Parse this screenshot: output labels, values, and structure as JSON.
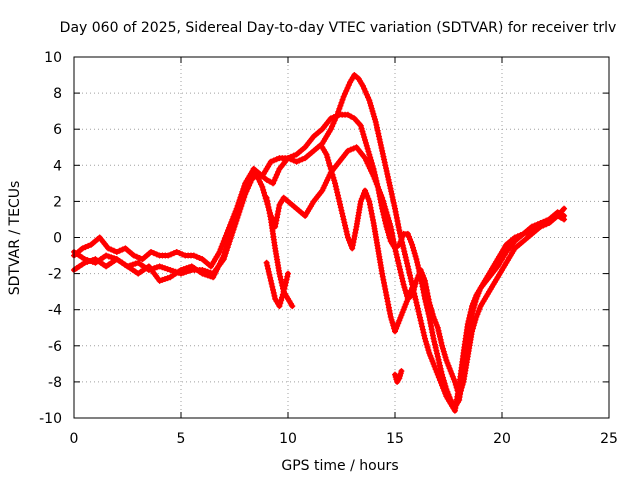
{
  "chart_data": {
    "type": "scatter",
    "title": "Day 060 of 2025, Sidereal Day-to-day VTEC variation (SDTVAR) for receiver trlv",
    "xlabel": "GPS time / hours",
    "ylabel": "SDTVAR / TECUs",
    "xlim": [
      0,
      25
    ],
    "ylim": [
      -10,
      10
    ],
    "xticks": [
      0,
      5,
      10,
      15,
      20,
      25
    ],
    "yticks": [
      -10,
      -8,
      -6,
      -4,
      -2,
      0,
      2,
      4,
      6,
      8,
      10
    ],
    "grid": true,
    "marker": "plus",
    "color": "#ff0000",
    "series": [
      {
        "x": [
          0,
          0.4,
          0.8,
          1.2,
          1.6,
          2.0,
          2.4,
          2.8,
          3.2,
          3.6,
          4.0,
          4.4,
          4.8,
          5.2,
          5.6,
          6.0,
          6.4,
          6.8,
          7.2,
          7.6,
          8.0,
          8.4,
          8.8,
          9.2,
          9.6,
          10.0,
          10.4,
          10.8,
          11.2,
          11.6,
          12.0,
          12.4,
          12.8,
          13.1,
          13.4,
          13.6,
          13.8,
          14.0,
          14.2,
          14.4,
          14.6,
          14.8,
          15.0,
          15.2,
          15.4,
          15.6,
          15.8,
          16.0,
          16.2,
          16.4,
          16.6,
          16.8,
          17.0,
          17.2,
          17.4,
          17.6,
          17.8,
          18.0,
          18.2,
          18.4,
          18.6,
          18.8,
          19.0,
          19.4,
          19.8,
          20.2,
          20.6,
          21.0,
          21.4,
          21.8,
          22.2,
          22.6,
          22.9
        ],
        "y": [
          -1.0,
          -0.6,
          -0.4,
          0.0,
          -0.6,
          -0.8,
          -0.6,
          -1.0,
          -1.2,
          -0.8,
          -1.0,
          -1.0,
          -0.8,
          -1.0,
          -1.0,
          -1.2,
          -1.6,
          -0.8,
          0.4,
          1.6,
          3.0,
          3.8,
          3.4,
          4.2,
          4.4,
          4.4,
          4.6,
          5.0,
          5.6,
          6.0,
          6.6,
          6.8,
          6.8,
          6.6,
          6.2,
          5.4,
          4.6,
          3.8,
          2.8,
          1.6,
          0.6,
          -0.2,
          -0.6,
          -0.4,
          0.2,
          0.2,
          -0.4,
          -1.2,
          -2.2,
          -3.4,
          -4.4,
          -5.6,
          -6.6,
          -7.6,
          -8.4,
          -9.0,
          -9.4,
          -9.0,
          -7.4,
          -5.6,
          -4.2,
          -3.4,
          -2.8,
          -2.2,
          -1.6,
          -0.8,
          -0.2,
          0.2,
          0.6,
          0.8,
          1.0,
          1.2,
          1.0
        ]
      },
      {
        "x": [
          0,
          0.5,
          1.0,
          1.5,
          2.0,
          2.5,
          3.0,
          3.5,
          4.0,
          4.5,
          5.0,
          5.5,
          6.0,
          6.5,
          7.0,
          7.5,
          8.0,
          8.3,
          8.6,
          9.0,
          9.3,
          9.6,
          10.0,
          10.4,
          10.8,
          11.2,
          11.6,
          12.0,
          12.3,
          12.6,
          12.9,
          13.1,
          13.3,
          13.5,
          13.8,
          14.1,
          14.4,
          14.7,
          15.0,
          15.2,
          15.4,
          15.6,
          15.8,
          16.0,
          16.2,
          16.4,
          16.6,
          16.8,
          17.0,
          17.2,
          17.4,
          17.6,
          17.8,
          18.0,
          18.2,
          18.4,
          18.6,
          18.8,
          19.0,
          19.4,
          19.8,
          20.2,
          20.6,
          21.0,
          21.4,
          21.8,
          22.2,
          22.6,
          22.9
        ],
        "y": [
          -1.8,
          -1.4,
          -1.2,
          -1.6,
          -1.2,
          -1.6,
          -1.4,
          -1.8,
          -1.6,
          -1.8,
          -2.0,
          -1.8,
          -1.8,
          -2.0,
          -1.2,
          0.6,
          2.4,
          3.2,
          3.6,
          3.2,
          3.0,
          3.8,
          4.4,
          4.2,
          4.4,
          4.8,
          5.2,
          6.0,
          6.8,
          7.8,
          8.6,
          9.0,
          8.8,
          8.4,
          7.6,
          6.4,
          4.8,
          3.2,
          1.6,
          0.4,
          -0.6,
          -1.6,
          -2.6,
          -3.6,
          -4.6,
          -5.6,
          -6.4,
          -7.0,
          -7.6,
          -8.2,
          -8.8,
          -9.2,
          -9.6,
          -8.2,
          -6.4,
          -4.8,
          -3.8,
          -3.2,
          -2.8,
          -2.0,
          -1.2,
          -0.4,
          0.0,
          0.2,
          0.4,
          0.6,
          0.8,
          1.2,
          1.6
        ]
      },
      {
        "x": [
          0,
          0.5,
          1.0,
          1.5,
          2.0,
          2.5,
          3.0,
          3.5,
          4.0,
          4.5,
          5.0,
          5.5,
          6.0,
          6.5,
          7.0,
          7.5,
          8.0,
          8.4,
          8.8,
          9.0,
          9.2,
          9.4,
          9.6,
          9.8,
          10.0,
          10.4,
          10.8,
          11.2,
          11.6,
          12.0,
          12.4,
          12.8,
          13.2,
          13.6,
          14.0,
          14.4,
          14.8,
          15.0,
          15.2,
          15.4,
          15.6,
          15.8,
          16.0,
          16.2,
          16.4,
          16.6,
          16.8,
          17.0,
          17.2,
          17.4,
          17.6,
          17.8,
          18.0,
          18.2,
          18.4,
          18.6,
          18.8,
          19.0,
          19.4,
          19.8,
          20.2,
          20.6,
          21.0,
          21.4,
          21.8,
          22.2,
          22.6,
          22.9
        ],
        "y": [
          -0.8,
          -1.2,
          -1.4,
          -1.0,
          -1.2,
          -1.6,
          -2.0,
          -1.6,
          -2.4,
          -2.2,
          -1.8,
          -1.6,
          -2.0,
          -2.2,
          -1.0,
          0.8,
          2.6,
          3.8,
          2.8,
          2.0,
          1.2,
          0.6,
          1.8,
          2.2,
          2.0,
          1.6,
          1.2,
          2.0,
          2.6,
          3.6,
          4.2,
          4.8,
          5.0,
          4.4,
          3.4,
          2.2,
          0.6,
          -0.6,
          -1.6,
          -2.6,
          -3.4,
          -3.2,
          -2.4,
          -1.8,
          -2.4,
          -3.6,
          -4.4,
          -5.0,
          -6.0,
          -6.8,
          -7.4,
          -8.0,
          -8.8,
          -8.0,
          -6.6,
          -5.2,
          -4.4,
          -3.8,
          -3.0,
          -2.2,
          -1.4,
          -0.6,
          -0.2,
          0.2,
          0.6,
          1.0,
          1.4,
          1.2
        ]
      },
      {
        "x": [
          9.0,
          9.2,
          9.4,
          9.6,
          9.8,
          10.0,
          10.2
        ],
        "y": [
          2.2,
          1.0,
          -0.6,
          -2.0,
          -3.0,
          -3.4,
          -3.8
        ]
      },
      {
        "x": [
          11.6,
          11.8,
          12.0,
          12.2,
          12.4,
          12.6,
          12.8,
          13.0,
          13.2,
          13.4,
          13.6,
          13.8,
          14.0,
          14.2,
          14.4,
          14.6,
          14.8,
          15.0,
          15.2,
          15.4,
          15.6,
          15.8
        ],
        "y": [
          5.0,
          4.6,
          3.8,
          3.0,
          2.0,
          1.0,
          0.0,
          -0.6,
          0.6,
          2.0,
          2.6,
          2.0,
          0.8,
          -0.6,
          -2.0,
          -3.2,
          -4.4,
          -5.2,
          -4.6,
          -4.0,
          -3.4,
          -2.8
        ]
      },
      {
        "x": [
          9.0,
          9.2,
          9.4,
          9.6,
          9.8,
          10.0
        ],
        "y": [
          -1.4,
          -2.4,
          -3.4,
          -3.8,
          -3.0,
          -2.0
        ]
      },
      {
        "x": [
          15.0,
          15.1,
          15.2,
          15.3
        ],
        "y": [
          -7.6,
          -8.0,
          -7.8,
          -7.4
        ]
      }
    ]
  }
}
